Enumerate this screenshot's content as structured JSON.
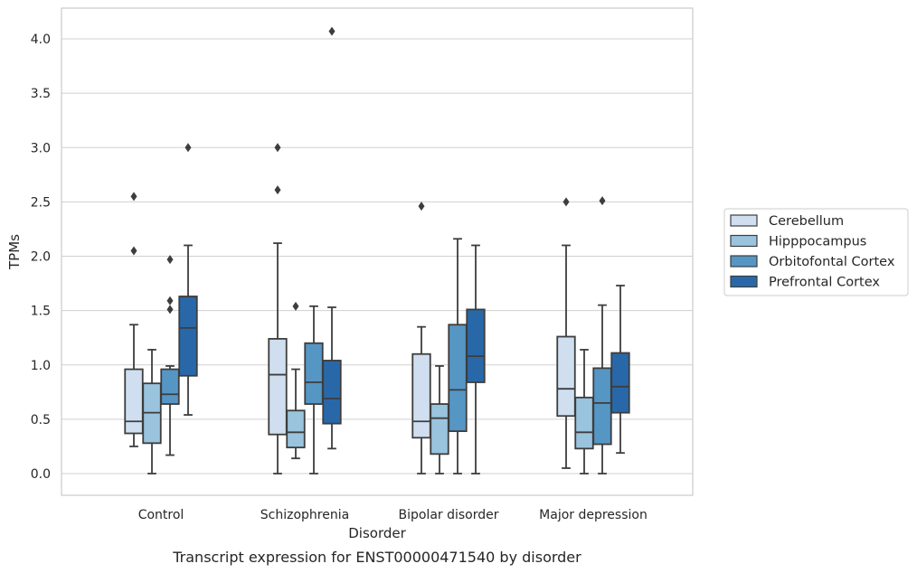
{
  "chart_data": {
    "type": "box",
    "xlabel": "Disorder",
    "ylabel": "TPMs",
    "caption": "Transcript expression for ENST00000471540 by disorder",
    "categories": [
      "Control",
      "Schizophrenia",
      "Bipolar disorder",
      "Major depression"
    ],
    "ylim": [
      -0.19,
      4.27
    ],
    "yticks": [
      0.0,
      0.5,
      1.0,
      1.5,
      2.0,
      2.5,
      3.0,
      3.5,
      4.0
    ],
    "ytick_labels": [
      "0.0",
      "0.5",
      "1.0",
      "1.5",
      "2.0",
      "2.5",
      "3.0",
      "3.5",
      "4.0"
    ],
    "grid": "horizontal",
    "legend_position": "right",
    "series": [
      {
        "name": "Cerebellum",
        "color": "#cfdff0",
        "boxes": [
          {
            "whislo": 0.25,
            "q1": 0.37,
            "med": 0.48,
            "q3": 0.96,
            "whishi": 1.37,
            "fliers": [
              2.05,
              2.55
            ]
          },
          {
            "whislo": 0.0,
            "q1": 0.36,
            "med": 0.91,
            "q3": 1.24,
            "whishi": 2.12,
            "fliers": [
              2.61,
              3.0
            ]
          },
          {
            "whislo": 0.0,
            "q1": 0.33,
            "med": 0.48,
            "q3": 1.1,
            "whishi": 1.35,
            "fliers": [
              2.46
            ]
          },
          {
            "whislo": 0.05,
            "q1": 0.53,
            "med": 0.78,
            "q3": 1.26,
            "whishi": 2.1,
            "fliers": [
              2.5
            ]
          }
        ]
      },
      {
        "name": "Hipppocampus",
        "color": "#9ac3dd",
        "boxes": [
          {
            "whislo": 0.0,
            "q1": 0.28,
            "med": 0.56,
            "q3": 0.83,
            "whishi": 1.14,
            "fliers": []
          },
          {
            "whislo": 0.14,
            "q1": 0.24,
            "med": 0.38,
            "q3": 0.58,
            "whishi": 0.96,
            "fliers": [
              1.54
            ]
          },
          {
            "whislo": 0.0,
            "q1": 0.18,
            "med": 0.51,
            "q3": 0.64,
            "whishi": 0.99,
            "fliers": []
          },
          {
            "whislo": 0.0,
            "q1": 0.23,
            "med": 0.38,
            "q3": 0.7,
            "whishi": 1.14,
            "fliers": []
          }
        ]
      },
      {
        "name": "Orbitofontal Cortex",
        "color": "#5596c4",
        "boxes": [
          {
            "whislo": 0.17,
            "q1": 0.64,
            "med": 0.73,
            "q3": 0.96,
            "whishi": 0.99,
            "fliers": [
              1.51,
              1.59,
              1.97
            ]
          },
          {
            "whislo": 0.0,
            "q1": 0.64,
            "med": 0.84,
            "q3": 1.2,
            "whishi": 1.54,
            "fliers": []
          },
          {
            "whislo": 0.0,
            "q1": 0.39,
            "med": 0.77,
            "q3": 1.37,
            "whishi": 2.16,
            "fliers": []
          },
          {
            "whislo": 0.0,
            "q1": 0.27,
            "med": 0.65,
            "q3": 0.97,
            "whishi": 1.55,
            "fliers": [
              2.51
            ]
          }
        ]
      },
      {
        "name": "Prefrontal Cortex",
        "color": "#2968a8",
        "boxes": [
          {
            "whislo": 0.54,
            "q1": 0.9,
            "med": 1.34,
            "q3": 1.63,
            "whishi": 2.1,
            "fliers": [
              3.0
            ]
          },
          {
            "whislo": 0.23,
            "q1": 0.46,
            "med": 0.69,
            "q3": 1.04,
            "whishi": 1.53,
            "fliers": [
              4.07
            ]
          },
          {
            "whislo": 0.0,
            "q1": 0.84,
            "med": 1.08,
            "q3": 1.51,
            "whishi": 2.1,
            "fliers": []
          },
          {
            "whislo": 0.19,
            "q1": 0.56,
            "med": 0.8,
            "q3": 1.11,
            "whishi": 1.73,
            "fliers": []
          }
        ]
      }
    ]
  }
}
